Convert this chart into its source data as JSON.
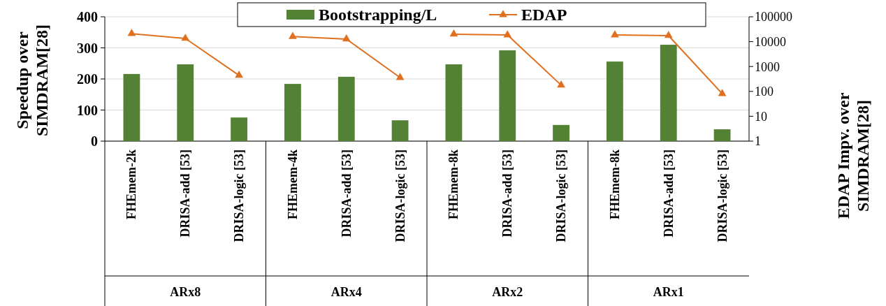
{
  "chart_data": {
    "type": "bar",
    "categories": [
      "FHEmem-2k",
      "DRISA-add [53]",
      "DRISA-logic [53]",
      "FHEmem-4k",
      "DRISA-add [53]",
      "DRISA-logic [53]",
      "FHEmem-8k",
      "DRISA-add [53]",
      "DRISA-logic [53]",
      "FHEmem-8k",
      "DRISA-add [53]",
      "DRISA-logic [53]"
    ],
    "series": [
      {
        "name": "Bootstrapping/L",
        "color": "#548235",
        "values": [
          216,
          247,
          76,
          184,
          207,
          67,
          247,
          292,
          52,
          256,
          310,
          38
        ]
      },
      {
        "name": "EDAP",
        "type": "line",
        "axis": "y2",
        "color": "#e0701f",
        "marker": "triangle",
        "values": [
          21000,
          13500,
          440,
          16000,
          12700,
          360,
          20000,
          18600,
          178,
          18600,
          17500,
          81
        ]
      }
    ],
    "ylabel": "Speedup over SIMDRAM[28]",
    "y2label": "EDAP Impv. over SIMDRAM[28]",
    "ylim": [
      0,
      400
    ],
    "yticks": [
      0,
      100,
      200,
      300,
      400
    ],
    "y2lim": [
      1,
      100000
    ],
    "y2ticks": [
      1,
      10,
      100,
      1000,
      10000,
      100000
    ],
    "log": "y2",
    "grid": "y",
    "legend": "top",
    "annotations": [
      "ARx8",
      "ARx4",
      "ARx2",
      "ARx1"
    ]
  }
}
